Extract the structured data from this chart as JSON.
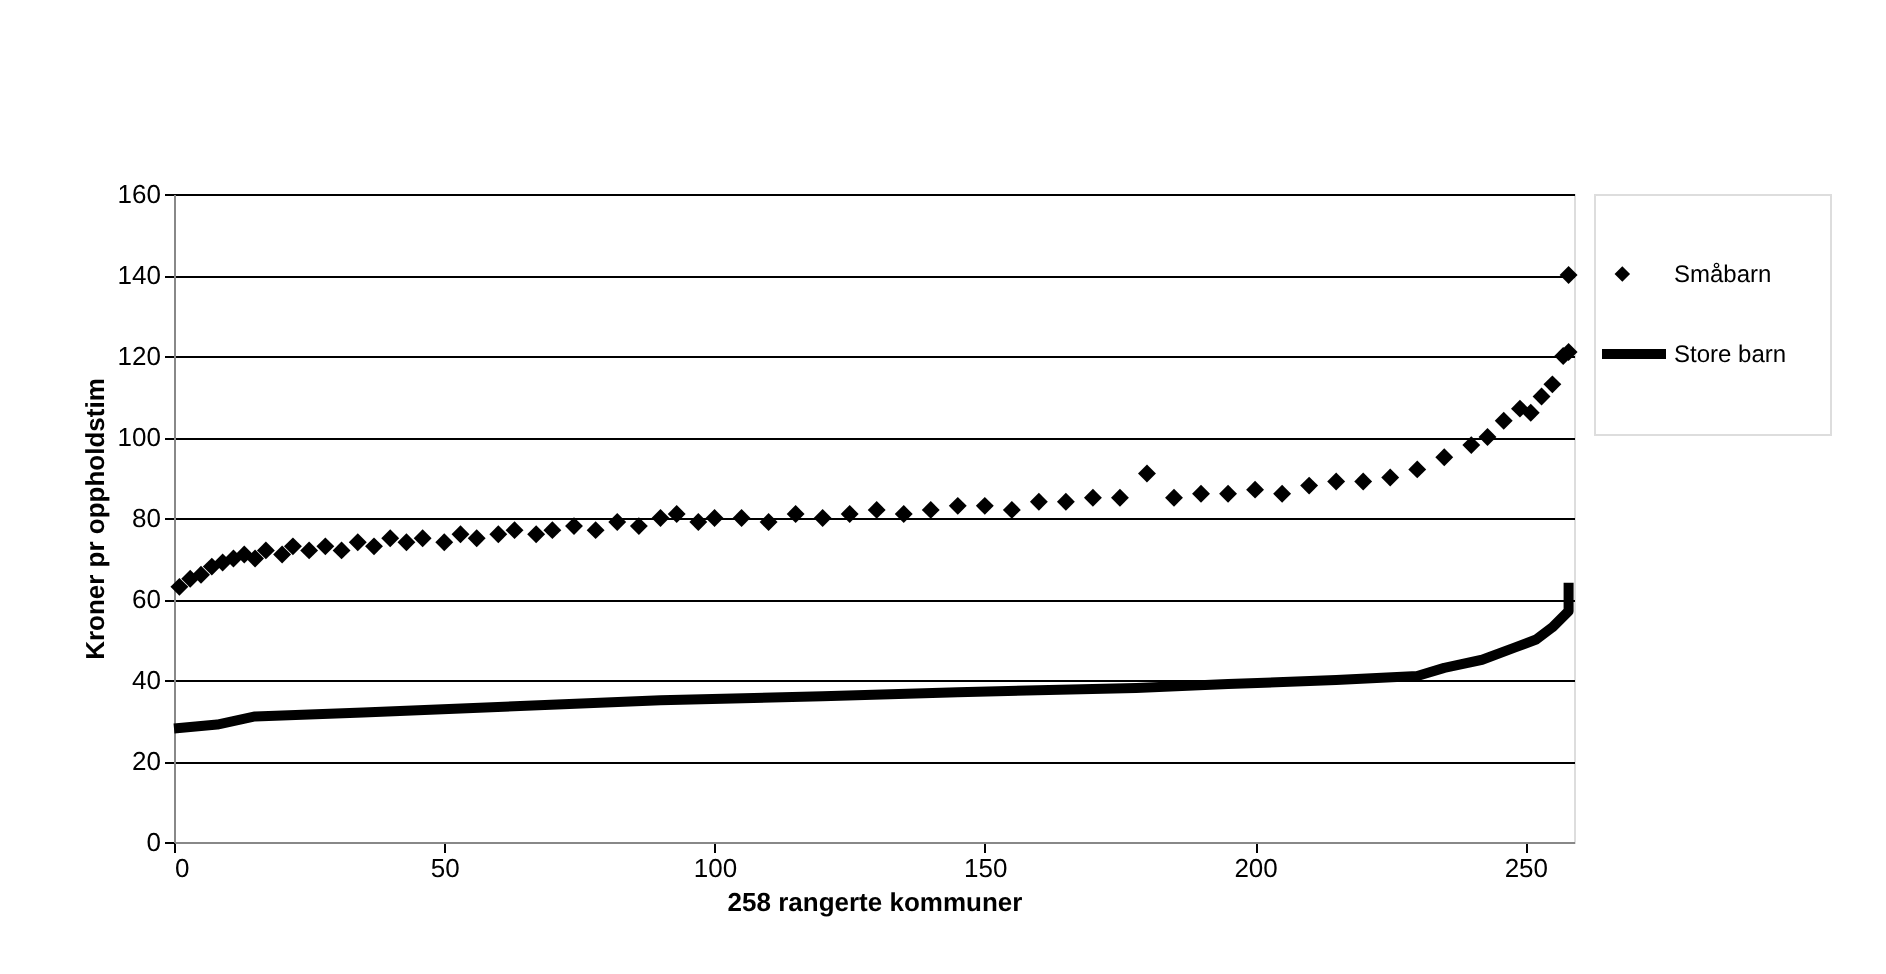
{
  "chart_data": {
    "type": "scatter",
    "xlabel": "258 rangerte kommuner",
    "ylabel": "Kroner pr oppholdstim",
    "xlim": [
      0,
      259
    ],
    "xticks": [
      0,
      50,
      100,
      150,
      200,
      250
    ],
    "ylim": [
      0,
      160
    ],
    "yticks": [
      0,
      20,
      40,
      60,
      80,
      100,
      120,
      140,
      160
    ],
    "grid": "y",
    "legend": "right",
    "series": [
      {
        "name": "Småbarn",
        "marker": "diamond",
        "color": "#000000",
        "x": [
          1,
          3,
          5,
          7,
          9,
          11,
          13,
          15,
          17,
          20,
          22,
          25,
          28,
          31,
          34,
          37,
          40,
          43,
          46,
          50,
          53,
          56,
          60,
          63,
          67,
          70,
          74,
          78,
          82,
          86,
          90,
          93,
          97,
          100,
          105,
          110,
          115,
          120,
          125,
          130,
          135,
          140,
          145,
          150,
          155,
          160,
          165,
          170,
          175,
          180,
          185,
          190,
          195,
          200,
          205,
          210,
          215,
          220,
          225,
          230,
          235,
          240,
          243,
          246,
          249,
          251,
          253,
          255,
          257,
          258,
          258
        ],
        "values": [
          63,
          65,
          66,
          68,
          69,
          70,
          71,
          70,
          72,
          71,
          73,
          72,
          73,
          72,
          74,
          73,
          75,
          74,
          75,
          74,
          76,
          75,
          76,
          77,
          76,
          77,
          78,
          77,
          79,
          78,
          80,
          81,
          79,
          80,
          80,
          79,
          81,
          80,
          81,
          82,
          81,
          82,
          83,
          83,
          82,
          84,
          84,
          85,
          85,
          91,
          85,
          86,
          86,
          87,
          86,
          88,
          89,
          89,
          90,
          92,
          95,
          98,
          100,
          104,
          107,
          106,
          110,
          113,
          120,
          121,
          140
        ]
      },
      {
        "name": "Store barn",
        "type": "line",
        "line_style": "solid",
        "color": "#000000",
        "x": [
          0,
          8,
          15,
          35,
          72,
          90,
          120,
          145,
          178,
          195,
          215,
          230,
          235,
          242,
          248,
          252,
          255,
          258,
          258
        ],
        "values": [
          28,
          29,
          31,
          32,
          34,
          35,
          36,
          37,
          38,
          39,
          40,
          41,
          43,
          45,
          48,
          50,
          53,
          57,
          64
        ]
      }
    ]
  }
}
